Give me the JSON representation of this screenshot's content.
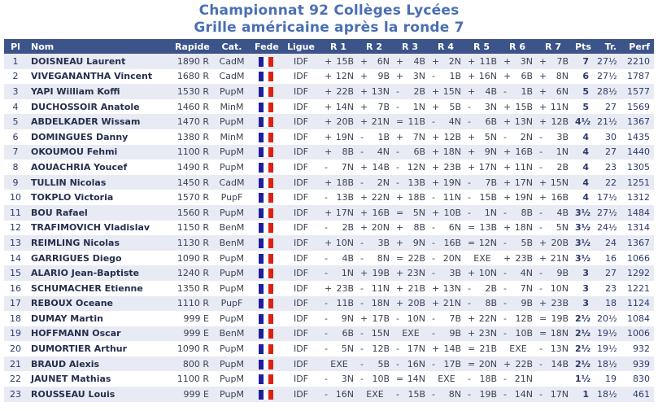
{
  "title": {
    "line1": "Championnat 92 Collèges Lycées",
    "line2": "Grille américaine après la ronde 7"
  },
  "colors": {
    "title_text": "#4A6FB5",
    "header_bg": "#3C5489",
    "header_text": "#FFFFFF",
    "row_alt_bg": "#E9EBF4",
    "flag_blue": "#1F1F9C",
    "flag_red": "#DE2110"
  },
  "table": {
    "headers": [
      "Pl",
      "Nom",
      "Rapide",
      "Cat.",
      "Fede",
      "Ligue",
      "R 1",
      "R 2",
      "R 3",
      "R 4",
      "R 5",
      "R 6",
      "R 7",
      "Pts",
      "Tr.",
      "Perf"
    ],
    "flag_name": "france-flag",
    "rows": [
      {
        "pl": "1",
        "nom": "DOISNEAU Laurent",
        "rapide": "1890 R",
        "cat": "CadM",
        "ligue": "IDF",
        "rounds": [
          "+15B",
          "+6N",
          "+4B",
          "+2N",
          "+11B",
          "+3N",
          "+7B"
        ],
        "pts": "7",
        "tr": "27½",
        "perf": "2210"
      },
      {
        "pl": "2",
        "nom": "VIVEGANANTHA Vincent",
        "rapide": "1680 R",
        "cat": "CadM",
        "ligue": "IDF",
        "rounds": [
          "+12N",
          "+9B",
          "+3N",
          "-1B",
          "+16N",
          "+6B",
          "+8N"
        ],
        "pts": "6",
        "tr": "27½",
        "perf": "1787"
      },
      {
        "pl": "3",
        "nom": "YAPI William Koffi",
        "rapide": "1530 R",
        "cat": "PupM",
        "ligue": "IDF",
        "rounds": [
          "+22B",
          "+13N",
          "-2B",
          "+15N",
          "+4B",
          "-1B",
          "+6N"
        ],
        "pts": "5",
        "tr": "28½",
        "perf": "1577"
      },
      {
        "pl": "4",
        "nom": "DUCHOSSOIR Anatole",
        "rapide": "1460 R",
        "cat": "MinM",
        "ligue": "IDF",
        "rounds": [
          "+14N",
          "+7B",
          "-1N",
          "+5B",
          "-3N",
          "+15B",
          "+11N"
        ],
        "pts": "5",
        "tr": "27",
        "perf": "1569"
      },
      {
        "pl": "5",
        "nom": "ABDELKADER Wissam",
        "rapide": "1470 R",
        "cat": "PupM",
        "ligue": "IDF",
        "rounds": [
          "+20B",
          "+21N",
          "=11B",
          "-4N",
          "-6B",
          "+13N",
          "+12B"
        ],
        "pts": "4½",
        "tr": "21½",
        "perf": "1367"
      },
      {
        "pl": "6",
        "nom": "DOMINGUES Danny",
        "rapide": "1380 R",
        "cat": "MinM",
        "ligue": "IDF",
        "rounds": [
          "+19N",
          "-1B",
          "+7N",
          "+12B",
          "+5N",
          "-2N",
          "-3B"
        ],
        "pts": "4",
        "tr": "30",
        "perf": "1435"
      },
      {
        "pl": "7",
        "nom": "OKOUMOU Fehmi",
        "rapide": "1100 R",
        "cat": "PupM",
        "ligue": "IDF",
        "rounds": [
          "+8B",
          "-4N",
          "-6B",
          "+18N",
          "+9N",
          "+16B",
          "-1N"
        ],
        "pts": "4",
        "tr": "27",
        "perf": "1440"
      },
      {
        "pl": "8",
        "nom": "AOUACHRIA Youcef",
        "rapide": "1490 R",
        "cat": "PupM",
        "ligue": "IDF",
        "rounds": [
          "-7N",
          "+14B",
          "-12N",
          "+23B",
          "+17N",
          "+11N",
          "-2B"
        ],
        "pts": "4",
        "tr": "23",
        "perf": "1305"
      },
      {
        "pl": "9",
        "nom": "TULLIN Nicolas",
        "rapide": "1450 R",
        "cat": "CadM",
        "ligue": "IDF",
        "rounds": [
          "+18B",
          "-2N",
          "-13B",
          "+19N",
          "-7B",
          "+17N",
          "+15N"
        ],
        "pts": "4",
        "tr": "22",
        "perf": "1251"
      },
      {
        "pl": "10",
        "nom": "TOKPLO Victoria",
        "rapide": "1570 R",
        "cat": "PupF",
        "ligue": "IDF",
        "rounds": [
          "-13B",
          "+22N",
          "+18B",
          "-11N",
          "-15B",
          "+19N",
          "+16B"
        ],
        "pts": "4",
        "tr": "17½",
        "perf": "1312"
      },
      {
        "pl": "11",
        "nom": "BOU Rafael",
        "rapide": "1560 R",
        "cat": "PupM",
        "ligue": "IDF",
        "rounds": [
          "+17N",
          "+16B",
          "=5N",
          "+10B",
          "-1N",
          "-8B",
          "-4B"
        ],
        "pts": "3½",
        "tr": "27½",
        "perf": "1484"
      },
      {
        "pl": "12",
        "nom": "TRAFIMOVICH Vladislav",
        "rapide": "1150 R",
        "cat": "BenM",
        "ligue": "IDF",
        "rounds": [
          "-2B",
          "+20N",
          "+8B",
          "-6N",
          "=13B",
          "+18N",
          "-5N"
        ],
        "pts": "3½",
        "tr": "24½",
        "perf": "1314"
      },
      {
        "pl": "13",
        "nom": "REIMLING Nicolas",
        "rapide": "1130 R",
        "cat": "BenM",
        "ligue": "IDF",
        "rounds": [
          "+10N",
          "-3B",
          "+9N",
          "-16B",
          "=12N",
          "-5B",
          "+20B"
        ],
        "pts": "3½",
        "tr": "24",
        "perf": "1367"
      },
      {
        "pl": "14",
        "nom": "GARRIGUES Diego",
        "rapide": "1090 R",
        "cat": "PupM",
        "ligue": "IDF",
        "rounds": [
          "-4B",
          "-8N",
          "=22B",
          "-20N",
          "EXE",
          "+23B",
          "+21N"
        ],
        "pts": "3½",
        "tr": "16",
        "perf": "1066"
      },
      {
        "pl": "15",
        "nom": "ALARIO Jean-Baptiste",
        "rapide": "1240 R",
        "cat": "PupM",
        "ligue": "IDF",
        "rounds": [
          "-1N",
          "+19B",
          "+23N",
          "-3B",
          "+10N",
          "-4N",
          "-9B"
        ],
        "pts": "3",
        "tr": "27",
        "perf": "1292"
      },
      {
        "pl": "16",
        "nom": "SCHUMACHER Etienne",
        "rapide": "1350 R",
        "cat": "PupM",
        "ligue": "IDF",
        "rounds": [
          "+23B",
          "-11N",
          "+21B",
          "+13N",
          "-2B",
          "-7N",
          "-10N"
        ],
        "pts": "3",
        "tr": "23",
        "perf": "1221"
      },
      {
        "pl": "17",
        "nom": "REBOUX Oceane",
        "rapide": "1110 R",
        "cat": "PupF",
        "ligue": "IDF",
        "rounds": [
          "-11B",
          "-18N",
          "+20B",
          "+21N",
          "-8B",
          "-9B",
          "+23B"
        ],
        "pts": "3",
        "tr": "18",
        "perf": "1124"
      },
      {
        "pl": "18",
        "nom": "DUMAY Martin",
        "rapide": "999 E",
        "cat": "PupM",
        "ligue": "IDF",
        "rounds": [
          "-9N",
          "+17B",
          "-10N",
          "-7B",
          "+22N",
          "-12B",
          "=19B"
        ],
        "pts": "2½",
        "tr": "20½",
        "perf": "1084"
      },
      {
        "pl": "19",
        "nom": "HOFFMANN Oscar",
        "rapide": "999 E",
        "cat": "BenM",
        "ligue": "IDF",
        "rounds": [
          "-6B",
          "-15N",
          "EXE",
          "-9B",
          "+23N",
          "-10B",
          "=18N"
        ],
        "pts": "2½",
        "tr": "19½",
        "perf": "1006"
      },
      {
        "pl": "20",
        "nom": "DUMORTIER Arthur",
        "rapide": "1090 R",
        "cat": "PupM",
        "ligue": "IDF",
        "rounds": [
          "-5N",
          "-12B",
          "-17N",
          "+14B",
          "=21B",
          "EXE",
          "-13N"
        ],
        "pts": "2½",
        "tr": "19½",
        "perf": "932"
      },
      {
        "pl": "21",
        "nom": "BRAUD Alexis",
        "rapide": "800 R",
        "cat": "PupM",
        "ligue": "IDF",
        "rounds": [
          "EXE",
          "-5B",
          "-16N",
          "-17B",
          "=20N",
          "+22B",
          "-14B"
        ],
        "pts": "2½",
        "tr": "18½",
        "perf": "939"
      },
      {
        "pl": "22",
        "nom": "JAUNET Mathias",
        "rapide": "1100 R",
        "cat": "PupM",
        "ligue": "IDF",
        "rounds": [
          "-3N",
          "-10B",
          "=14N",
          "EXE",
          "-18B",
          "-21N",
          ""
        ],
        "pts": "1½",
        "tr": "19",
        "perf": "830"
      },
      {
        "pl": "23",
        "nom": "ROUSSEAU Louis",
        "rapide": "999 E",
        "cat": "PupM",
        "ligue": "IDF",
        "rounds": [
          "-16N",
          "EXE",
          "-15B",
          "-8N",
          "-19B",
          "-14N",
          "-17N"
        ],
        "pts": "1",
        "tr": "18½",
        "perf": "461"
      }
    ]
  }
}
